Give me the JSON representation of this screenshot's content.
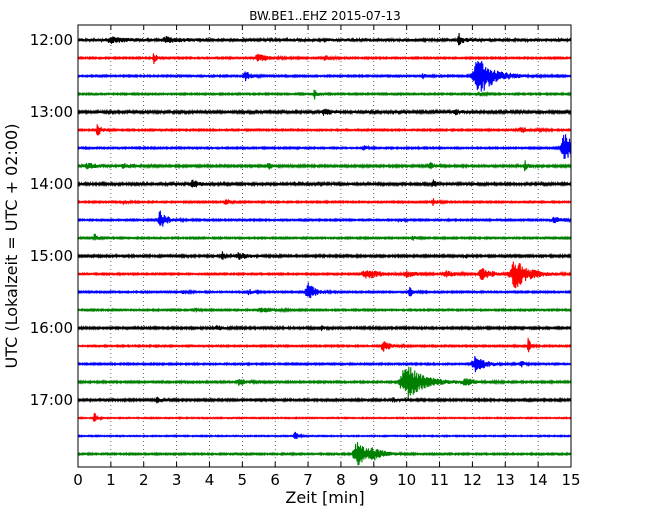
{
  "chart_data": {
    "type": "line",
    "title": "BW.BE1..EHZ 2015-07-13",
    "xlabel": "Zeit  [min]",
    "ylabel": "UTC (Lokalzeit = UTC + 02:00)",
    "xlim": [
      0,
      15
    ],
    "x_ticks": [
      "0",
      "1",
      "2",
      "3",
      "4",
      "5",
      "6",
      "7",
      "8",
      "9",
      "10",
      "11",
      "12",
      "13",
      "14",
      "15"
    ],
    "y_ticks": [
      "12:00",
      "13:00",
      "14:00",
      "15:00",
      "16:00",
      "17:00"
    ],
    "grid": "vertical dotted lines at each minute",
    "row_interval_minutes": 15,
    "colors": [
      "#000000",
      "#ff0000",
      "#0000ff",
      "#008000"
    ],
    "rows": [
      {
        "start": "12:00",
        "color": "#000000",
        "noise": 1.6,
        "events": [
          {
            "t": 11.6,
            "amp": 6,
            "dur": 0.12
          },
          {
            "t": 1.0,
            "amp": 3,
            "dur": 0.3
          },
          {
            "t": 2.7,
            "amp": 2.5,
            "dur": 0.3
          }
        ]
      },
      {
        "start": "12:15",
        "color": "#ff0000",
        "noise": 0.8,
        "events": [
          {
            "t": 2.3,
            "amp": 7,
            "dur": 0.08
          },
          {
            "t": 5.5,
            "amp": 4,
            "dur": 0.3
          },
          {
            "t": 7.5,
            "amp": 2.5,
            "dur": 0.2
          }
        ]
      },
      {
        "start": "12:30",
        "color": "#0000ff",
        "noise": 0.8,
        "events": [
          {
            "t": 12.2,
            "amp": 20,
            "dur": 0.45
          },
          {
            "t": 5.1,
            "amp": 5,
            "dur": 0.15
          },
          {
            "t": 10.5,
            "amp": 2.5,
            "dur": 0.1
          }
        ]
      },
      {
        "start": "12:45",
        "color": "#008000",
        "noise": 0.8,
        "events": [
          {
            "t": 7.2,
            "amp": 5,
            "dur": 0.08
          },
          {
            "t": 12.2,
            "amp": 2,
            "dur": 0.15
          }
        ]
      },
      {
        "start": "13:00",
        "color": "#000000",
        "noise": 1.2,
        "events": [
          {
            "t": 7.5,
            "amp": 3,
            "dur": 0.2
          },
          {
            "t": 11.5,
            "amp": 2,
            "dur": 0.2
          }
        ]
      },
      {
        "start": "13:15",
        "color": "#ff0000",
        "noise": 0.8,
        "events": [
          {
            "t": 0.6,
            "amp": 6,
            "dur": 0.12
          },
          {
            "t": 13.5,
            "amp": 2.5,
            "dur": 0.3
          }
        ]
      },
      {
        "start": "13:30",
        "color": "#0000ff",
        "noise": 0.8,
        "events": [
          {
            "t": 14.8,
            "amp": 17,
            "dur": 0.28
          },
          {
            "t": 8.7,
            "amp": 2.5,
            "dur": 0.1
          }
        ]
      },
      {
        "start": "13:45",
        "color": "#008000",
        "noise": 1.0,
        "events": [
          {
            "t": 0.3,
            "amp": 3,
            "dur": 0.3
          },
          {
            "t": 5.8,
            "amp": 4,
            "dur": 0.1
          },
          {
            "t": 10.7,
            "amp": 4,
            "dur": 0.1
          },
          {
            "t": 13.6,
            "amp": 5,
            "dur": 0.1
          },
          {
            "t": 1.4,
            "amp": 2,
            "dur": 0.4
          }
        ]
      },
      {
        "start": "14:00",
        "color": "#000000",
        "noise": 1.3,
        "events": [
          {
            "t": 3.5,
            "amp": 4,
            "dur": 0.15
          },
          {
            "t": 10.8,
            "amp": 4,
            "dur": 0.1
          }
        ]
      },
      {
        "start": "14:15",
        "color": "#ff0000",
        "noise": 0.8,
        "events": [
          {
            "t": 1.4,
            "amp": 3,
            "dur": 0.1
          },
          {
            "t": 4.5,
            "amp": 4,
            "dur": 0.1
          },
          {
            "t": 10.8,
            "amp": 4,
            "dur": 0.1
          }
        ]
      },
      {
        "start": "14:30",
        "color": "#0000ff",
        "noise": 0.8,
        "events": [
          {
            "t": 2.5,
            "amp": 9,
            "dur": 0.22
          },
          {
            "t": 9.8,
            "amp": 2.5,
            "dur": 0.1
          },
          {
            "t": 14.5,
            "amp": 3,
            "dur": 0.3
          }
        ]
      },
      {
        "start": "14:45",
        "color": "#008000",
        "noise": 0.8,
        "events": [
          {
            "t": 0.5,
            "amp": 5,
            "dur": 0.08
          },
          {
            "t": 10.2,
            "amp": 2,
            "dur": 0.1
          }
        ]
      },
      {
        "start": "15:00",
        "color": "#000000",
        "noise": 1.0,
        "events": [
          {
            "t": 4.4,
            "amp": 4,
            "dur": 0.08
          },
          {
            "t": 4.9,
            "amp": 3,
            "dur": 0.3
          },
          {
            "t": 11.8,
            "amp": 2,
            "dur": 0.1
          }
        ]
      },
      {
        "start": "15:15",
        "color": "#ff0000",
        "noise": 0.8,
        "events": [
          {
            "t": 13.3,
            "amp": 15,
            "dur": 0.4
          },
          {
            "t": 8.8,
            "amp": 5,
            "dur": 0.4
          },
          {
            "t": 12.3,
            "amp": 6,
            "dur": 0.3
          },
          {
            "t": 10.0,
            "amp": 3,
            "dur": 0.3
          },
          {
            "t": 11.2,
            "amp": 3,
            "dur": 0.3
          }
        ]
      },
      {
        "start": "15:30",
        "color": "#0000ff",
        "noise": 0.8,
        "events": [
          {
            "t": 7.0,
            "amp": 10,
            "dur": 0.2
          },
          {
            "t": 10.1,
            "amp": 6,
            "dur": 0.1
          },
          {
            "t": 3.2,
            "amp": 3,
            "dur": 0.1
          },
          {
            "t": 5.2,
            "amp": 3,
            "dur": 0.1
          }
        ]
      },
      {
        "start": "15:45",
        "color": "#008000",
        "noise": 0.8,
        "events": [
          {
            "t": 5.6,
            "amp": 3,
            "dur": 0.3
          },
          {
            "t": 3.6,
            "amp": 2,
            "dur": 0.1
          }
        ]
      },
      {
        "start": "16:00",
        "color": "#000000",
        "noise": 1.0,
        "events": [
          {
            "t": 4.2,
            "amp": 2.5,
            "dur": 0.2
          },
          {
            "t": 7.4,
            "amp": 2.5,
            "dur": 0.1
          }
        ]
      },
      {
        "start": "16:15",
        "color": "#ff0000",
        "noise": 0.8,
        "events": [
          {
            "t": 9.3,
            "amp": 6,
            "dur": 0.2
          },
          {
            "t": 13.7,
            "amp": 9,
            "dur": 0.06
          }
        ]
      },
      {
        "start": "16:30",
        "color": "#0000ff",
        "noise": 0.8,
        "events": [
          {
            "t": 12.1,
            "amp": 8,
            "dur": 0.3
          },
          {
            "t": 13.5,
            "amp": 3,
            "dur": 0.1
          }
        ]
      },
      {
        "start": "16:45",
        "color": "#008000",
        "noise": 0.9,
        "events": [
          {
            "t": 10.0,
            "amp": 18,
            "dur": 0.5
          },
          {
            "t": 4.9,
            "amp": 4,
            "dur": 0.15
          },
          {
            "t": 11.8,
            "amp": 3,
            "dur": 0.3
          }
        ]
      },
      {
        "start": "17:00",
        "color": "#000000",
        "noise": 1.0,
        "events": [
          {
            "t": 2.4,
            "amp": 3,
            "dur": 0.1
          },
          {
            "t": 9.6,
            "amp": 2,
            "dur": 0.2
          }
        ]
      },
      {
        "start": "17:15",
        "color": "#ff0000",
        "noise": 0.6,
        "events": [
          {
            "t": 0.5,
            "amp": 6,
            "dur": 0.08
          }
        ]
      },
      {
        "start": "17:30",
        "color": "#0000ff",
        "noise": 0.6,
        "events": [
          {
            "t": 6.6,
            "amp": 5,
            "dur": 0.08
          }
        ]
      },
      {
        "start": "17:45",
        "color": "#008000",
        "noise": 0.8,
        "events": [
          {
            "t": 8.5,
            "amp": 12,
            "dur": 0.35
          },
          {
            "t": 9.0,
            "amp": 4,
            "dur": 0.3
          }
        ]
      }
    ]
  }
}
